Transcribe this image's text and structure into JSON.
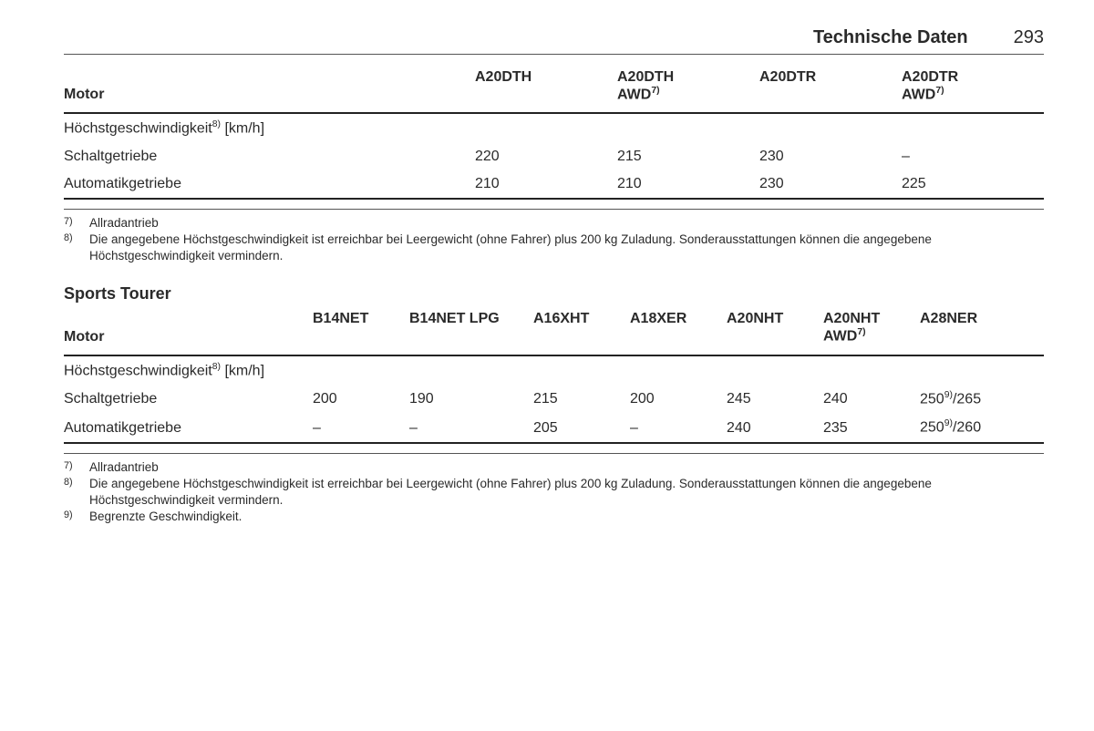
{
  "header": {
    "section_title": "Technische Daten",
    "page_number": "293"
  },
  "table1": {
    "row_header": "Motor",
    "cols": [
      {
        "line1": "A20DTH",
        "line2": ""
      },
      {
        "line1": "A20DTH",
        "line2": "AWD",
        "line2_sup": "7)"
      },
      {
        "line1": "A20DTR",
        "line2": ""
      },
      {
        "line1": "A20DTR",
        "line2": "AWD",
        "line2_sup": "7)"
      }
    ],
    "section_label": {
      "text": "Höchstgeschwindigkeit",
      "sup": "8)",
      "suffix": " [km/h]"
    },
    "rows": [
      {
        "label": "Schaltgetriebe",
        "vals": [
          "220",
          "215",
          "230",
          "–"
        ]
      },
      {
        "label": "Automatikgetriebe",
        "vals": [
          "210",
          "210",
          "230",
          "225"
        ]
      }
    ]
  },
  "footnotes1": {
    "items": [
      {
        "num": "7)",
        "text": "Allradantrieb"
      },
      {
        "num": "8)",
        "text": "Die angegebene Höchstgeschwindigkeit ist erreichbar bei Leergewicht (ohne Fahrer) plus 200 kg Zuladung. Sonderausstattungen können die angegebene Höchstgeschwindigkeit vermindern."
      }
    ]
  },
  "subheading": "Sports Tourer",
  "table2": {
    "row_header": "Motor",
    "cols": [
      {
        "line1": "B14NET",
        "line2": ""
      },
      {
        "line1": "B14NET LPG",
        "line2": ""
      },
      {
        "line1": "A16XHT",
        "line2": ""
      },
      {
        "line1": "A18XER",
        "line2": ""
      },
      {
        "line1": "A20NHT",
        "line2": ""
      },
      {
        "line1": "A20NHT",
        "line2": "AWD",
        "line2_sup": "7)"
      },
      {
        "line1": "A28NER",
        "line2": ""
      }
    ],
    "section_label": {
      "text": "Höchstgeschwindigkeit",
      "sup": "8)",
      "suffix": " [km/h]"
    },
    "rows": [
      {
        "label": "Schaltgetriebe",
        "vals": [
          "200",
          "190",
          "215",
          "200",
          "245",
          "240",
          {
            "pre": "250",
            "sup": "9)",
            "post": "/265"
          }
        ]
      },
      {
        "label": "Automatikgetriebe",
        "vals": [
          "–",
          "–",
          "205",
          "–",
          "240",
          "235",
          {
            "pre": "250",
            "sup": "9)",
            "post": "/260"
          }
        ]
      }
    ]
  },
  "footnotes2": {
    "items": [
      {
        "num": "7)",
        "text": "Allradantrieb"
      },
      {
        "num": "8)",
        "text": "Die angegebene Höchstgeschwindigkeit ist erreichbar bei Leergewicht (ohne Fahrer) plus 200 kg Zuladung. Sonderausstattungen können die angegebene Höchstgeschwindigkeit vermindern."
      },
      {
        "num": "9)",
        "text": "Begrenzte Geschwindigkeit."
      }
    ]
  }
}
